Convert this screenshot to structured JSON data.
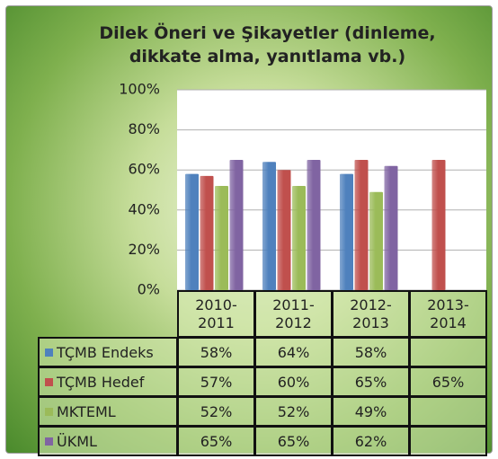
{
  "chart_data": {
    "type": "bar",
    "title": "Dilek Öneri ve Şikayetler (dinleme, dikkate alma, yanıtlama vb.)",
    "categories": [
      "2010-2011",
      "2011-2012",
      "2012-2013",
      "2013-2014"
    ],
    "series": [
      {
        "name": "TÇMB Endeks",
        "color": "#4f81bd",
        "values": [
          58,
          64,
          58,
          null
        ],
        "value_labels": [
          "58%",
          "64%",
          "58%",
          null
        ]
      },
      {
        "name": "TÇMB Hedef",
        "color": "#c0504d",
        "values": [
          57,
          60,
          65,
          65
        ],
        "value_labels": [
          "57%",
          "60%",
          "65%",
          "65%"
        ]
      },
      {
        "name": "MKTEML",
        "color": "#9bbb59",
        "values": [
          52,
          52,
          49,
          null
        ],
        "value_labels": [
          "52%",
          "52%",
          "49%",
          null
        ]
      },
      {
        "name": "ÜKML",
        "color": "#8064a2",
        "values": [
          65,
          65,
          62,
          null
        ],
        "value_labels": [
          "65%",
          "65%",
          "62%",
          null
        ]
      }
    ],
    "ylim": [
      0,
      100
    ],
    "yticks": [
      {
        "value": 0,
        "label": "0%"
      },
      {
        "value": 20,
        "label": "20%"
      },
      {
        "value": 40,
        "label": "40%"
      },
      {
        "value": 60,
        "label": "60%"
      },
      {
        "value": 80,
        "label": "80%"
      },
      {
        "value": 100,
        "label": "100%"
      }
    ],
    "grid": true,
    "data_table": true
  }
}
